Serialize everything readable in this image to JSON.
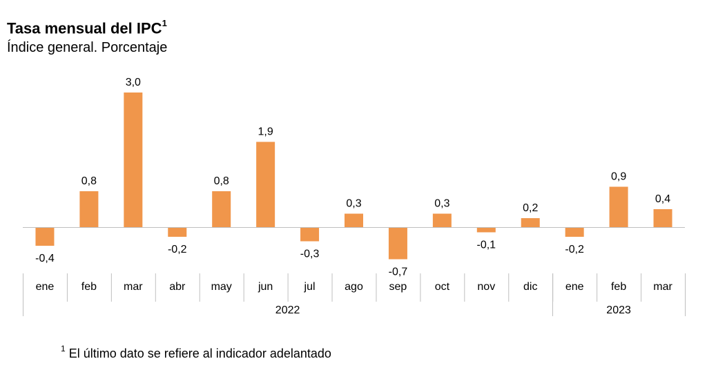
{
  "chart_data": {
    "type": "bar",
    "title": "Tasa mensual del IPC",
    "title_footnote_marker": "1",
    "subtitle": "Índice general. Porcentaje",
    "categories": [
      "ene",
      "feb",
      "mar",
      "abr",
      "may",
      "jun",
      "jul",
      "ago",
      "sep",
      "oct",
      "nov",
      "dic",
      "ene",
      "feb",
      "mar"
    ],
    "values": [
      -0.4,
      0.8,
      3.0,
      -0.2,
      0.8,
      1.9,
      -0.3,
      0.3,
      -0.7,
      0.3,
      -0.1,
      0.2,
      -0.2,
      0.9,
      0.4
    ],
    "data_labels": [
      "-0,4",
      "0,8",
      "3,0",
      "-0,2",
      "0,8",
      "1,9",
      "-0,3",
      "0,3",
      "-0,7",
      "0,3",
      "-0,1",
      "0,2",
      "-0,2",
      "0,9",
      "0,4"
    ],
    "year_groups": [
      {
        "label": "2022",
        "count": 12
      },
      {
        "label": "2023",
        "count": 3
      }
    ],
    "bar_color": "#F0964B",
    "axis_color": "#BFBFBF",
    "ylim": [
      -0.7,
      3.0
    ],
    "grid": false,
    "legend": "none"
  },
  "footnote": {
    "marker": "1",
    "text": "El último dato se refiere al indicador adelantado"
  }
}
